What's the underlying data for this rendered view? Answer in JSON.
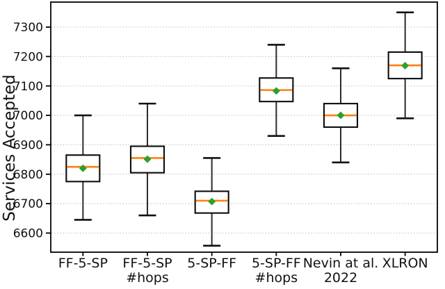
{
  "figure": {
    "background": "#ffffff"
  },
  "chart_data": {
    "type": "boxplot",
    "title": "",
    "xlabel": "",
    "ylabel": "Services Accepted",
    "ylim": [
      6535,
      7385
    ],
    "yticks": [
      6600,
      6700,
      6800,
      6900,
      7000,
      7100,
      7200,
      7300
    ],
    "grid": {
      "horizontal": true,
      "style": "dotted",
      "color": "#c6c6c6"
    },
    "legend": null,
    "categories": [
      "FF-5-SP",
      "FF-5-SP #hops",
      "5-SP-FF",
      "5-SP-FF #hops",
      "Nevin at al. 2022",
      "XLRON"
    ],
    "series": [
      {
        "name": "FF-5-SP",
        "label_lines": [
          "FF-5-SP"
        ],
        "whislo": 6645,
        "q1": 6775,
        "med": 6825,
        "mean": 6820,
        "q3": 6865,
        "whishi": 7000
      },
      {
        "name": "FF-5-SP #hops",
        "label_lines": [
          "FF-5-SP",
          "#hops"
        ],
        "whislo": 6660,
        "q1": 6805,
        "med": 6855,
        "mean": 6851,
        "q3": 6895,
        "whishi": 7040
      },
      {
        "name": "5-SP-FF",
        "label_lines": [
          "5-SP-FF"
        ],
        "whislo": 6557,
        "q1": 6668,
        "med": 6710,
        "mean": 6707,
        "q3": 6742,
        "whishi": 6855
      },
      {
        "name": "5-SP-FF #hops",
        "label_lines": [
          "5-SP-FF",
          "#hops"
        ],
        "whislo": 6930,
        "q1": 7047,
        "med": 7086,
        "mean": 7083,
        "q3": 7127,
        "whishi": 7240
      },
      {
        "name": "Nevin at al. 2022",
        "label_lines": [
          "Nevin at al.",
          "2022"
        ],
        "whislo": 6840,
        "q1": 6960,
        "med": 7000,
        "mean": 7000,
        "q3": 7040,
        "whishi": 7160
      },
      {
        "name": "XLRON",
        "label_lines": [
          "XLRON"
        ],
        "whislo": 6990,
        "q1": 7125,
        "med": 7170,
        "mean": 7169,
        "q3": 7215,
        "whishi": 7350
      }
    ],
    "colors": {
      "median": "#ff7f0e",
      "mean_marker": "#2ca02c",
      "box_edge": "#0d0d0d",
      "box_fill": "#ffffff",
      "whisker": "#2b2b2b",
      "cap": "#111111",
      "axis": "#000000",
      "tick_text": "#111111",
      "grid": "#c6c6c6"
    },
    "mean_marker_shape": "diamond"
  }
}
